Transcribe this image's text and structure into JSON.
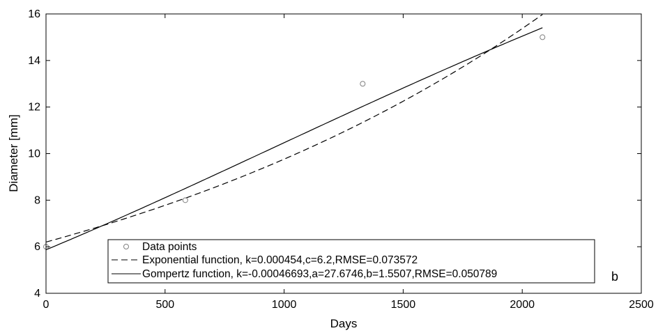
{
  "chart_data": {
    "type": "scatter",
    "xlabel": "Days",
    "ylabel": "Diameter [mm]",
    "xlim": [
      0,
      2500
    ],
    "ylim": [
      4,
      16
    ],
    "xticks": [
      0,
      500,
      1000,
      1500,
      2000,
      2500
    ],
    "yticks": [
      4,
      6,
      8,
      10,
      12,
      14,
      16
    ],
    "grid": false,
    "legend_position": "bottom",
    "panel_label": "b",
    "series": [
      {
        "name": "Data points",
        "kind": "markers",
        "marker": "open-circle",
        "color": "#808080",
        "x": [
          0,
          585,
          1330,
          2085
        ],
        "y": [
          6,
          8,
          13,
          15
        ]
      },
      {
        "name": "Exponential function, k=0.000454,c=6.2,RMSE=0.073572",
        "kind": "line",
        "line_style": "dashed",
        "color": "#000000",
        "function": "exponential",
        "params": {
          "k": 0.000454,
          "c": 6.2
        },
        "x_range": [
          0,
          2085
        ]
      },
      {
        "name": "Gompertz function, k=-0.00046693,a=27.6746,b=1.5507,RMSE=0.050789",
        "kind": "line",
        "line_style": "solid",
        "color": "#000000",
        "function": "gompertz",
        "params": {
          "k": -0.00046693,
          "a": 27.6746,
          "b": 1.5507
        },
        "x_range": [
          0,
          2085
        ]
      }
    ]
  }
}
